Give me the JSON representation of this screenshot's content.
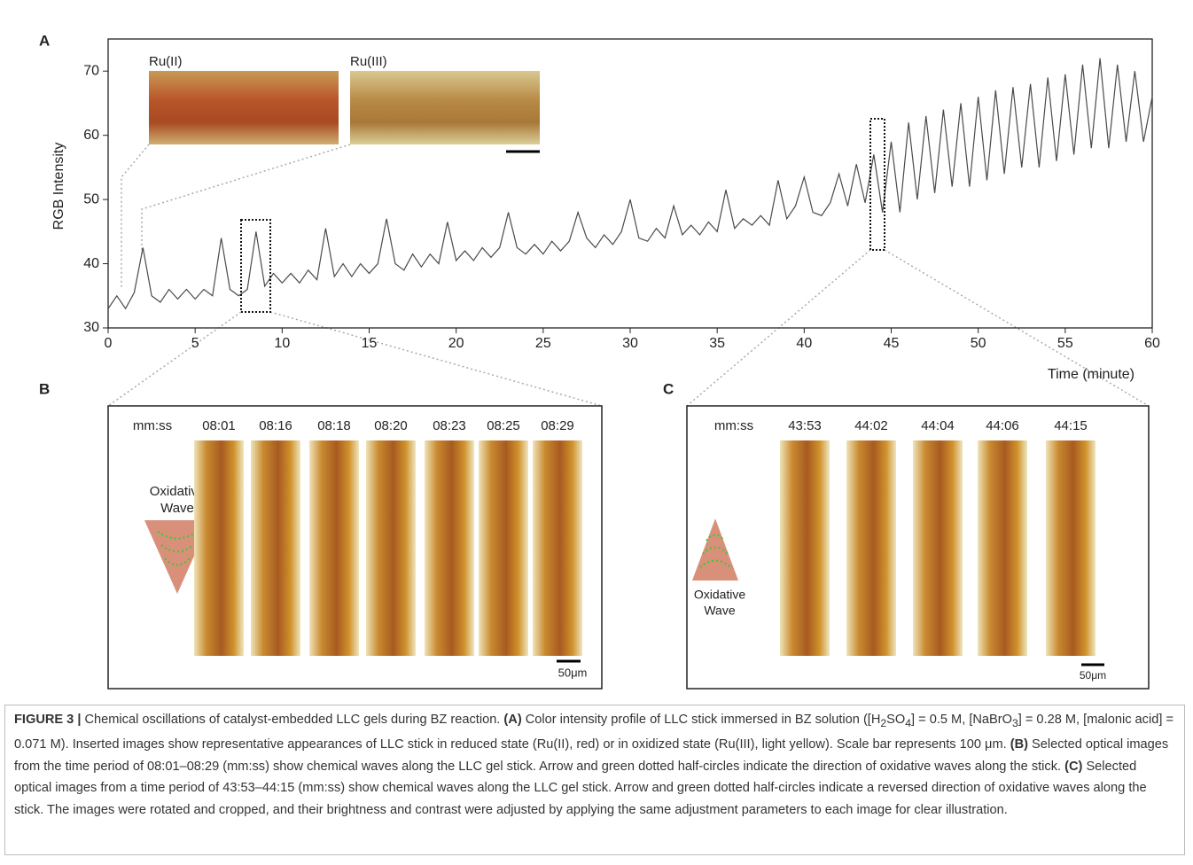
{
  "chart_data": {
    "type": "line",
    "y_label": "RGB Intensity",
    "x_label": "Time (minute)",
    "color": "#4a4a4a",
    "x": [
      0,
      0.5,
      1,
      1.5,
      2,
      2.5,
      3,
      3.5,
      4,
      4.5,
      5,
      5.5,
      6,
      6.5,
      7,
      7.5,
      8,
      8.5,
      9,
      9.5,
      10,
      10.5,
      11,
      11.5,
      12,
      12.5,
      13,
      13.5,
      14,
      14.5,
      15,
      15.5,
      16,
      16.5,
      17,
      17.5,
      18,
      18.5,
      19,
      19.5,
      20,
      20.5,
      21,
      21.5,
      22,
      22.5,
      23,
      23.5,
      24,
      24.5,
      25,
      25.5,
      26,
      26.5,
      27,
      27.5,
      28,
      28.5,
      29,
      29.5,
      30,
      30.5,
      31,
      31.5,
      32,
      32.5,
      33,
      33.5,
      34,
      34.5,
      35,
      35.5,
      36,
      36.5,
      37,
      37.5,
      38,
      38.5,
      39,
      39.5,
      40,
      40.5,
      41,
      41.5,
      42,
      42.5,
      43,
      43.5,
      44,
      44.5,
      45,
      45.5,
      46,
      46.5,
      47,
      47.5,
      48,
      48.5,
      49,
      49.5,
      50,
      50.5,
      51,
      51.5,
      52,
      52.5,
      53,
      53.5,
      54,
      54.5,
      55,
      55.5,
      56,
      56.5,
      57,
      57.5,
      58,
      58.5,
      59,
      59.5,
      60
    ],
    "values": [
      33,
      35,
      33,
      35.5,
      42.5,
      35,
      34,
      36,
      34.5,
      36,
      34.5,
      36,
      35,
      44,
      36,
      35,
      36,
      45,
      36.5,
      38.5,
      37,
      38.5,
      37,
      39,
      37.5,
      45.5,
      38,
      40,
      38,
      40,
      38.5,
      40,
      47,
      40,
      39,
      41.5,
      39.5,
      41.5,
      40,
      46.5,
      40.5,
      42,
      40.5,
      42.5,
      41,
      42.5,
      48,
      42.5,
      41.5,
      43,
      41.5,
      43.5,
      42,
      43.5,
      48,
      44,
      42.5,
      44.5,
      43,
      45,
      50,
      44,
      43.5,
      45.5,
      44,
      49,
      44.5,
      46,
      44.5,
      46.5,
      45,
      51.5,
      45.5,
      47,
      46,
      47.5,
      46,
      53,
      47,
      49,
      53.5,
      48,
      47.5,
      49.5,
      54,
      49,
      55.5,
      49.5,
      57,
      48,
      59,
      48,
      62,
      50,
      63,
      51,
      64,
      52,
      65,
      52,
      66,
      53,
      67,
      54,
      67.5,
      55,
      68,
      55,
      69,
      56,
      69.5,
      57,
      71,
      58,
      72,
      58,
      71,
      59,
      70,
      59,
      66
    ],
    "xlim": [
      0,
      60
    ],
    "ylim": [
      30,
      75
    ],
    "xticks": [
      0,
      5,
      10,
      15,
      20,
      25,
      30,
      35,
      40,
      45,
      50,
      55,
      60
    ],
    "yticks": [
      30,
      40,
      50,
      60,
      70
    ]
  },
  "panel_labels": [
    "A",
    "B",
    "C"
  ],
  "insets": [
    "Ru(II)",
    "Ru(III)"
  ],
  "panel_b": {
    "time_label": "mm:ss",
    "times": [
      "08:01",
      "08:16",
      "08:18",
      "08:20",
      "08:23",
      "08:25",
      "08:29"
    ],
    "wave_label": [
      "Oxidative",
      "Wave"
    ],
    "scale": "50μm"
  },
  "panel_c": {
    "time_label": "mm:ss",
    "times": [
      "43:53",
      "44:02",
      "44:04",
      "44:06",
      "44:15"
    ],
    "wave_label": [
      "Oxidative",
      "Wave"
    ],
    "scale": "50μm"
  },
  "caption": [
    "FIGURE 3 |",
    " Chemical oscillations of catalyst-embedded LLC gels during BZ reaction. ",
    "(A)",
    " Color intensity profile of LLC stick immersed in BZ solution ([H",
    "2",
    "SO",
    "4",
    "] = 0.5 M, [NaBrO",
    "3",
    "] = 0.28 M, [malonic acid] = 0.071 M). Inserted images show representative appearances of LLC stick in reduced state (Ru(II), red) or in oxidized state (Ru(III), light yellow). Scale bar represents 100 μm. ",
    "(B)",
    " Selected optical images from the time period of 08:01–08:29 (mm:ss) show chemical waves along the LLC gel stick. Arrow and green dotted half-circles indicate the direction of oxidative waves along the stick. ",
    "(C)",
    " Selected optical images from a time period of 43:53–44:15 (mm:ss) show chemical waves along the LLC gel stick. Arrow and green dotted half-circles indicate a reversed direction of oxidative waves along the stick. The images were rotated and cropped, and their brightness and contrast were adjusted by applying the same adjustment parameters to each image for clear illustration."
  ]
}
